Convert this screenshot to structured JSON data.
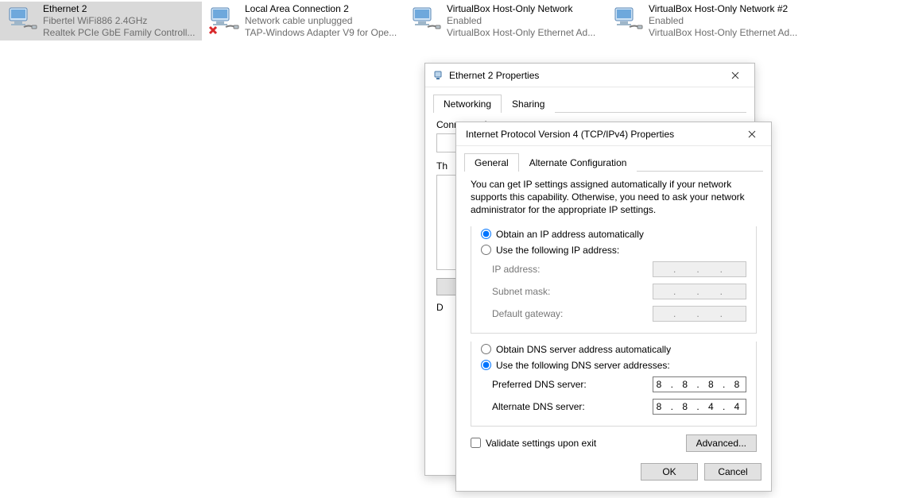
{
  "adapters": [
    {
      "name": "Ethernet 2",
      "status": "Fibertel WiFi886 2.4GHz",
      "device": "Realtek PCIe GbE Family Controll...",
      "selected": true,
      "error": false
    },
    {
      "name": "Local Area Connection 2",
      "status": "Network cable unplugged",
      "device": "TAP-Windows Adapter V9 for Ope...",
      "selected": false,
      "error": true
    },
    {
      "name": "VirtualBox Host-Only Network",
      "status": "Enabled",
      "device": "VirtualBox Host-Only Ethernet Ad...",
      "selected": false,
      "error": false
    },
    {
      "name": "VirtualBox Host-Only Network #2",
      "status": "Enabled",
      "device": "VirtualBox Host-Only Ethernet Ad...",
      "selected": false,
      "error": false
    }
  ],
  "ethDialog": {
    "title": "Ethernet 2 Properties",
    "tabs": {
      "networking": "Networking",
      "sharing": "Sharing",
      "active": "networking"
    },
    "connectUsingLabel": "Connect using:",
    "thisConnectionUsesLabel": "Th",
    "descriptionLabel": "D"
  },
  "ipv4Dialog": {
    "title": "Internet Protocol Version 4 (TCP/IPv4) Properties",
    "tabs": {
      "general": "General",
      "alternate": "Alternate Configuration",
      "active": "general"
    },
    "helpText": "You can get IP settings assigned automatically if your network supports this capability. Otherwise, you need to ask your network administrator for the appropriate IP settings.",
    "ip": {
      "obtainAuto": "Obtain an IP address automatically",
      "useFollowing": "Use the following IP address:",
      "mode": "auto",
      "fields": {
        "ipAddressLabel": "IP address:",
        "subnetLabel": "Subnet mask:",
        "gatewayLabel": "Default gateway:",
        "ipAddress": ".   .   .",
        "subnet": ".   .   .",
        "gateway": ".   .   ."
      }
    },
    "dns": {
      "obtainAuto": "Obtain DNS server address automatically",
      "useFollowing": "Use the following DNS server addresses:",
      "mode": "manual",
      "fields": {
        "preferredLabel": "Preferred DNS server:",
        "alternateLabel": "Alternate DNS server:",
        "preferred": "8 . 8 . 8 . 8",
        "alternate": "8 . 8 . 4 . 4"
      }
    },
    "validateLabel": "Validate settings upon exit",
    "validateChecked": false,
    "advancedLabel": "Advanced...",
    "okLabel": "OK",
    "cancelLabel": "Cancel"
  },
  "colors": {
    "selection": "#d9d9d9",
    "border": "#bcbcbc",
    "secondaryText": "#6d6d6d",
    "buttonBg": "#e1e1e1",
    "buttonBorder": "#adadad"
  }
}
